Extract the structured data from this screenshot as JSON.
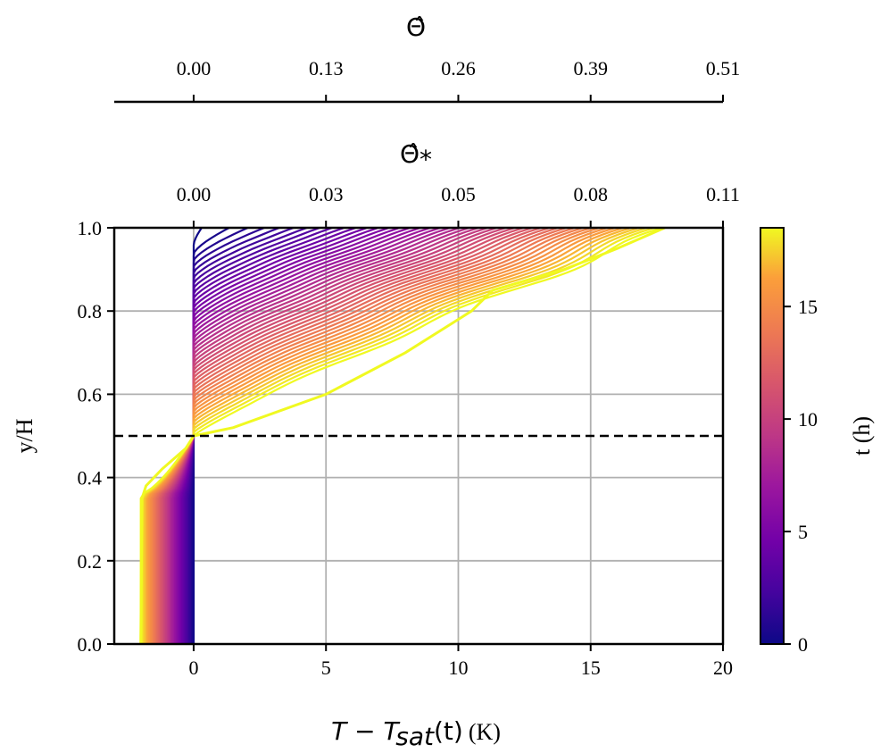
{
  "chart_data": {
    "type": "line",
    "ylabel": "y/H",
    "xlabel_math": "T − T",
    "xlabel_math_sub": "sat",
    "xlabel_math_tail": "(t)",
    "xlabel_units": "(K)",
    "xlim": [
      -3,
      20
    ],
    "ylim": [
      0.0,
      1.0
    ],
    "xticks": [
      0,
      5,
      10,
      15,
      20
    ],
    "yticks": [
      0.0,
      0.2,
      0.4,
      0.6,
      0.8,
      1.0
    ],
    "xtick_labels": [
      "0",
      "5",
      "10",
      "15",
      "20"
    ],
    "ytick_labels": [
      "0.0",
      "0.2",
      "0.4",
      "0.6",
      "0.8",
      "1.0"
    ],
    "interface_y": 0.5,
    "secondary_axis_1": {
      "label": "Θ̂",
      "tick_positions": [
        0,
        5,
        10,
        15,
        20
      ],
      "tick_labels": [
        "0.00",
        "0.13",
        "0.26",
        "0.39",
        "0.51"
      ]
    },
    "secondary_axis_2": {
      "label": "Θ̂",
      "label_sub": "*",
      "tick_positions": [
        0,
        5,
        10,
        15,
        20
      ],
      "tick_labels": [
        "0.00",
        "0.03",
        "0.05",
        "0.08",
        "0.11"
      ]
    },
    "colorbar": {
      "label": "t (h)",
      "range": [
        0,
        18.5
      ],
      "ticks": [
        0,
        5,
        10,
        15
      ],
      "tick_labels": [
        "0",
        "5",
        "10",
        "15"
      ],
      "colormap": "plasma"
    },
    "series_summary": {
      "count": 45,
      "t_start_h": 0,
      "t_end_h": 18.5,
      "final_profile": {
        "y": [
          0.0,
          0.35,
          0.38,
          0.42,
          0.47,
          0.5,
          0.52,
          0.6,
          0.7,
          0.8,
          0.85,
          0.9,
          0.95,
          1.0
        ],
        "x": [
          -2.0,
          -1.95,
          -1.8,
          -1.2,
          -0.3,
          0.0,
          1.5,
          5.0,
          8.0,
          10.5,
          11.3,
          14.0,
          16.0,
          17.8
        ]
      }
    }
  }
}
